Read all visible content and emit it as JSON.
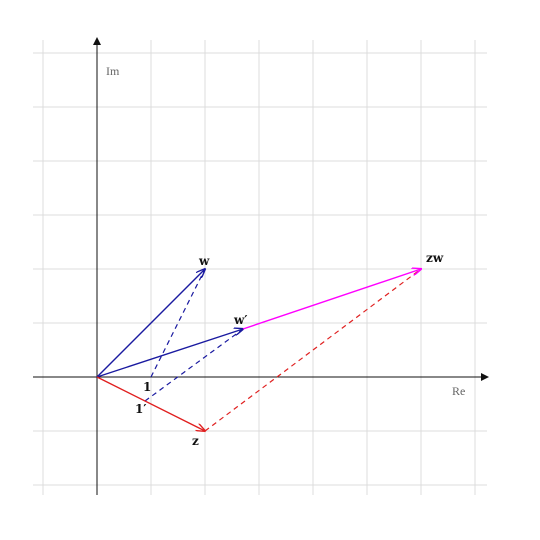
{
  "axes": {
    "x_label": "Re",
    "y_label": "Im"
  },
  "points": {
    "w": "w",
    "w_prime": "w′",
    "zw": "zw",
    "z": "z",
    "one": "1",
    "one_prime": "1′"
  }
}
